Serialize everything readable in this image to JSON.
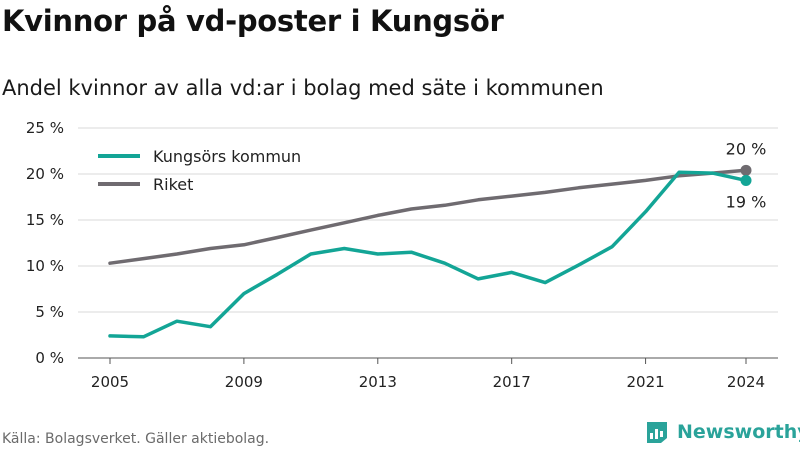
{
  "title": "Kvinnor på vd-poster i Kungsör",
  "subtitle": "Andel kvinnor av alla vd:ar i bolag med säte i kommunen",
  "source": "Källa: Bolagsverket. Gäller aktiebolag.",
  "brand": {
    "name": "Newsworthy",
    "icon": "newsworthy-logo-icon",
    "color": "#2aa39a"
  },
  "chart_data": {
    "type": "line",
    "x_ticks": [
      2005,
      2009,
      2013,
      2017,
      2021,
      2024
    ],
    "y_ticks": [
      0,
      5,
      10,
      15,
      20,
      25
    ],
    "y_tick_suffix": " %",
    "xlim": [
      2005,
      2024
    ],
    "ylim": [
      0,
      25
    ],
    "grid": "horizontal",
    "legend_position": "top-left",
    "series": [
      {
        "name": "Kungsörs kommun",
        "color": "#13a596",
        "x": [
          2005,
          2006,
          2007,
          2008,
          2009,
          2010,
          2011,
          2012,
          2013,
          2014,
          2015,
          2016,
          2017,
          2018,
          2019,
          2020,
          2021,
          2022,
          2023,
          2024
        ],
        "values": [
          2.4,
          2.3,
          4.0,
          3.4,
          7.0,
          9.1,
          11.3,
          11.9,
          11.3,
          11.5,
          10.3,
          8.6,
          9.3,
          8.2,
          10.1,
          12.1,
          15.9,
          20.2,
          20.1,
          19.3
        ],
        "end_label": "19 %"
      },
      {
        "name": "Riket",
        "color": "#6f6b70",
        "x": [
          2005,
          2006,
          2007,
          2008,
          2009,
          2010,
          2011,
          2012,
          2013,
          2014,
          2015,
          2016,
          2017,
          2018,
          2019,
          2020,
          2021,
          2022,
          2023,
          2024
        ],
        "values": [
          10.3,
          10.8,
          11.3,
          11.9,
          12.3,
          13.1,
          13.9,
          14.7,
          15.5,
          16.2,
          16.6,
          17.2,
          17.6,
          18.0,
          18.5,
          18.9,
          19.3,
          19.8,
          20.1,
          20.4
        ],
        "end_label": "20 %"
      }
    ]
  }
}
